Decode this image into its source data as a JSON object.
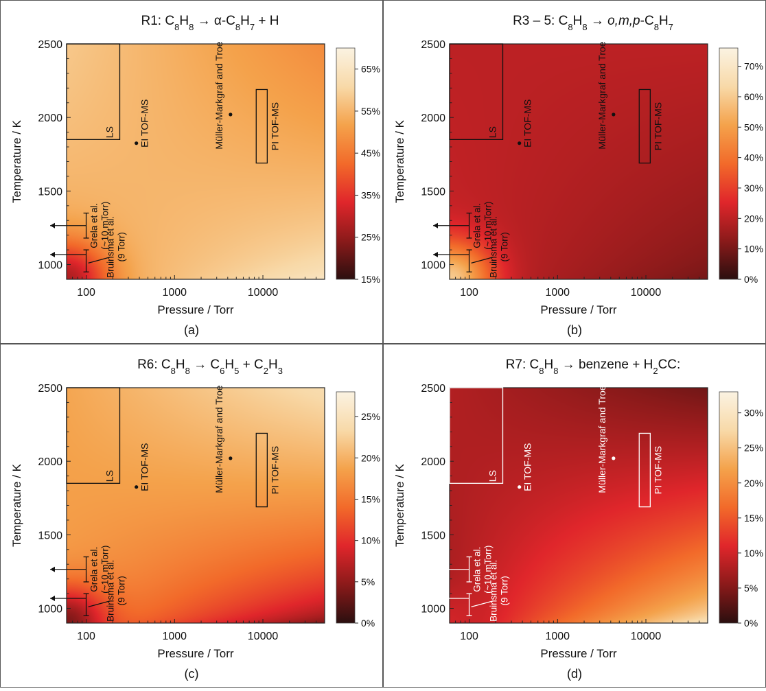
{
  "figure": {
    "background": "#ffffff",
    "border": "#555555"
  },
  "chart_data": [
    {
      "type": "heatmap",
      "label": "(a)",
      "title": {
        "prefix": "R1: C",
        "sub1": "8",
        "mid": "H",
        "sub2": "8",
        "rest": " → α-C",
        "sub3": "8",
        "rest2": "H",
        "sub4": "7",
        "rest3": " + H"
      },
      "xlabel": "Pressure / Torr",
      "ylabel": "Temperature / K",
      "xscale": "log",
      "xlim": [
        60,
        50000
      ],
      "ylim": [
        900,
        2500
      ],
      "xticks": [
        "100",
        "1000",
        "10000"
      ],
      "yticks": [
        "1000",
        "1500",
        "2000",
        "2500"
      ],
      "colorbar": {
        "range": [
          15,
          70
        ],
        "ticks": [
          "15%",
          "25%",
          "35%",
          "45%",
          "55%",
          "65%"
        ],
        "tick_values": [
          15,
          25,
          35,
          45,
          55,
          65
        ]
      },
      "colormap": [
        "#2b0f0f",
        "#8b1a1a",
        "#e0262b",
        "#f26a2a",
        "#f4a24b",
        "#f8d9a8",
        "#fbf3e2"
      ],
      "field": {
        "base": 50,
        "low_p_high_t": 58,
        "high_p_low_t": 66,
        "corner_low": 28,
        "high_t": 48
      },
      "annotation_color": "#111111",
      "annotations": {
        "ls": "LS",
        "ei": "EI TOF-MS",
        "mm": "Müller-Markgraf and Troe",
        "pi": "PI TOF-MS",
        "grela1": "Grela et al.",
        "grela2": "(~10 mTorr)",
        "bruinsma1": "Bruinsma et al.",
        "bruinsma2": "(9 Torr)"
      }
    },
    {
      "type": "heatmap",
      "label": "(b)",
      "title": {
        "prefix": "R3 – 5: C",
        "sub1": "8",
        "mid": "H",
        "sub2": "8",
        "rest": " → ",
        "italic": "o,m,p",
        "rest_after_italic": "-C",
        "sub3": "8",
        "rest2": "H",
        "sub4": "7",
        "rest3": ""
      },
      "xlabel": "Pressure / Torr",
      "ylabel": "Temperature / K",
      "xscale": "log",
      "xlim": [
        60,
        50000
      ],
      "ylim": [
        900,
        2500
      ],
      "xticks": [
        "100",
        "1000",
        "10000"
      ],
      "yticks": [
        "1000",
        "1500",
        "2000",
        "2500"
      ],
      "colorbar": {
        "range": [
          0,
          76
        ],
        "ticks": [
          "0%",
          "10%",
          "20%",
          "30%",
          "40%",
          "50%",
          "60%",
          "70%"
        ],
        "tick_values": [
          0,
          10,
          20,
          30,
          40,
          50,
          60,
          70
        ]
      },
      "colormap": [
        "#2b0f0f",
        "#8b1a1a",
        "#e0262b",
        "#f26a2a",
        "#f4a24b",
        "#f8d9a8",
        "#fbf3e2"
      ],
      "field": {
        "base": 22,
        "low_p_high_t": 20,
        "high_p_low_t": 9,
        "corner_low": 60,
        "high_t": 20
      },
      "annotation_color": "#111111",
      "annotations": {
        "ls": "LS",
        "ei": "EI TOF-MS",
        "mm": "Müller-Markgraf and Troe",
        "pi": "PI TOF-MS",
        "grela1": "Grela et al.",
        "grela2": "(~10 mTorr)",
        "bruinsma1": "Bruinsma et al.",
        "bruinsma2": "(9 Torr)"
      }
    },
    {
      "type": "heatmap",
      "label": "(c)",
      "title": {
        "prefix": "R6: C",
        "sub1": "8",
        "mid": "H",
        "sub2": "8",
        "rest": " → C",
        "sub3": "6",
        "rest2": "H",
        "sub4": "5",
        "rest3": " + C",
        "sub5": "2",
        "rest4": "H",
        "sub6": "3"
      },
      "xlabel": "Pressure / Torr",
      "ylabel": "Temperature / K",
      "xscale": "log",
      "xlim": [
        60,
        50000
      ],
      "ylim": [
        900,
        2500
      ],
      "xticks": [
        "100",
        "1000",
        "10000"
      ],
      "yticks": [
        "1000",
        "1500",
        "2000",
        "2500"
      ],
      "colorbar": {
        "range": [
          0,
          28
        ],
        "ticks": [
          "0%",
          "5%",
          "10%",
          "15%",
          "20%",
          "25%"
        ],
        "tick_values": [
          0,
          5,
          10,
          15,
          20,
          25
        ]
      },
      "colormap": [
        "#2b0f0f",
        "#8b1a1a",
        "#e0262b",
        "#f26a2a",
        "#f4a24b",
        "#f8d9a8",
        "#fbf3e2"
      ],
      "field": {
        "base": 17,
        "low_p_high_t": 19,
        "high_p_low_t": 3,
        "corner_low": 4,
        "high_t": 24
      },
      "annotation_color": "#111111",
      "annotations": {
        "ls": "LS",
        "ei": "EI TOF-MS",
        "mm": "Müller-Markgraf and Troe",
        "pi": "PI TOF-MS",
        "grela1": "Grela et al.",
        "grela2": "(~10 mTorr)",
        "bruinsma1": "Bruinsma et al.",
        "bruinsma2": "(9 Torr)"
      }
    },
    {
      "type": "heatmap",
      "label": "(d)",
      "title": {
        "prefix": "R7: C",
        "sub1": "8",
        "mid": "H",
        "sub2": "8",
        "rest": " → benzene + H",
        "sub3": "2",
        "rest2": "CC:",
        "sub4": "",
        "rest3": ""
      },
      "xlabel": "Pressure / Torr",
      "ylabel": "Temperature / K",
      "xscale": "log",
      "xlim": [
        60,
        50000
      ],
      "ylim": [
        900,
        2500
      ],
      "xticks": [
        "100",
        "1000",
        "10000"
      ],
      "yticks": [
        "1000",
        "1500",
        "2000",
        "2500"
      ],
      "colorbar": {
        "range": [
          0,
          33
        ],
        "ticks": [
          "0%",
          "5%",
          "10%",
          "15%",
          "20%",
          "25%",
          "30%"
        ],
        "tick_values": [
          0,
          5,
          10,
          15,
          20,
          25,
          30
        ]
      },
      "colormap": [
        "#2b0f0f",
        "#8b1a1a",
        "#e0262b",
        "#f26a2a",
        "#f4a24b",
        "#f8d9a8",
        "#fbf3e2"
      ],
      "field": {
        "base": 7,
        "low_p_high_t": 8,
        "high_p_low_t": 31,
        "corner_low": 10,
        "high_t": 4
      },
      "annotation_color": "#ffffff",
      "annotations": {
        "ls": "LS",
        "ei": "EI TOF-MS",
        "mm": "Müller-Markgraf and Troe",
        "pi": "PI TOF-MS",
        "grela1": "Grela et al.",
        "grela2": "(~10 mTorr)",
        "bruinsma1": "Bruinsma et al.",
        "bruinsma2": "(9 Torr)"
      }
    }
  ]
}
